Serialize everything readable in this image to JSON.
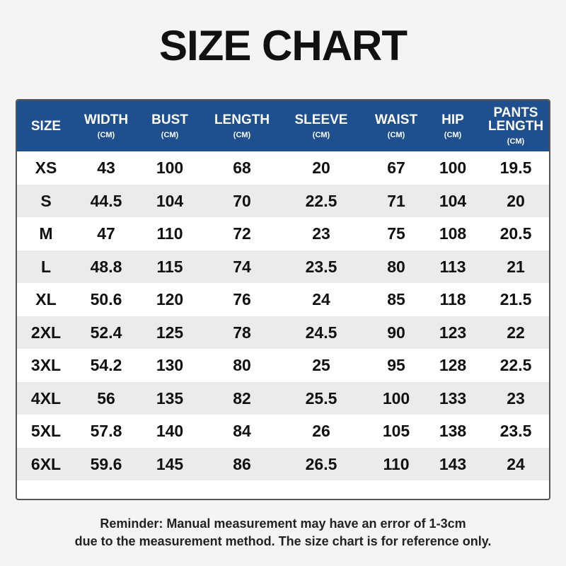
{
  "header": {
    "title": "SIZE CHART"
  },
  "table": {
    "columns": [
      {
        "name": "SIZE"
      },
      {
        "name": "WIDTH",
        "unit": "(CM)"
      },
      {
        "name": "BUST",
        "unit": "(CM)"
      },
      {
        "name": "LENGTH",
        "unit": "(CM)"
      },
      {
        "name": "SLEEVE",
        "unit": "(CM)"
      },
      {
        "name": "WAIST",
        "unit": "(CM)"
      },
      {
        "name": "HIP",
        "unit": "(CM)"
      },
      {
        "name": "PANTS LENGTH",
        "unit": "(CM)"
      }
    ],
    "rows": [
      [
        "XS",
        "43",
        "100",
        "68",
        "20",
        "67",
        "100",
        "19.5"
      ],
      [
        "S",
        "44.5",
        "104",
        "70",
        "22.5",
        "71",
        "104",
        "20"
      ],
      [
        "M",
        "47",
        "110",
        "72",
        "23",
        "75",
        "108",
        "20.5"
      ],
      [
        "L",
        "48.8",
        "115",
        "74",
        "23.5",
        "80",
        "113",
        "21"
      ],
      [
        "XL",
        "50.6",
        "120",
        "76",
        "24",
        "85",
        "118",
        "21.5"
      ],
      [
        "2XL",
        "52.4",
        "125",
        "78",
        "24.5",
        "90",
        "123",
        "22"
      ],
      [
        "3XL",
        "54.2",
        "130",
        "80",
        "25",
        "95",
        "128",
        "22.5"
      ],
      [
        "4XL",
        "56",
        "135",
        "82",
        "25.5",
        "100",
        "133",
        "23"
      ],
      [
        "5XL",
        "57.8",
        "140",
        "84",
        "26",
        "105",
        "138",
        "23.5"
      ],
      [
        "6XL",
        "59.6",
        "145",
        "86",
        "26.5",
        "110",
        "143",
        "24"
      ]
    ]
  },
  "footer": {
    "lines": [
      "Reminder: Manual measurement may have an error of 1-3cm",
      "due to the measurement method. The size chart is for reference only."
    ]
  }
}
